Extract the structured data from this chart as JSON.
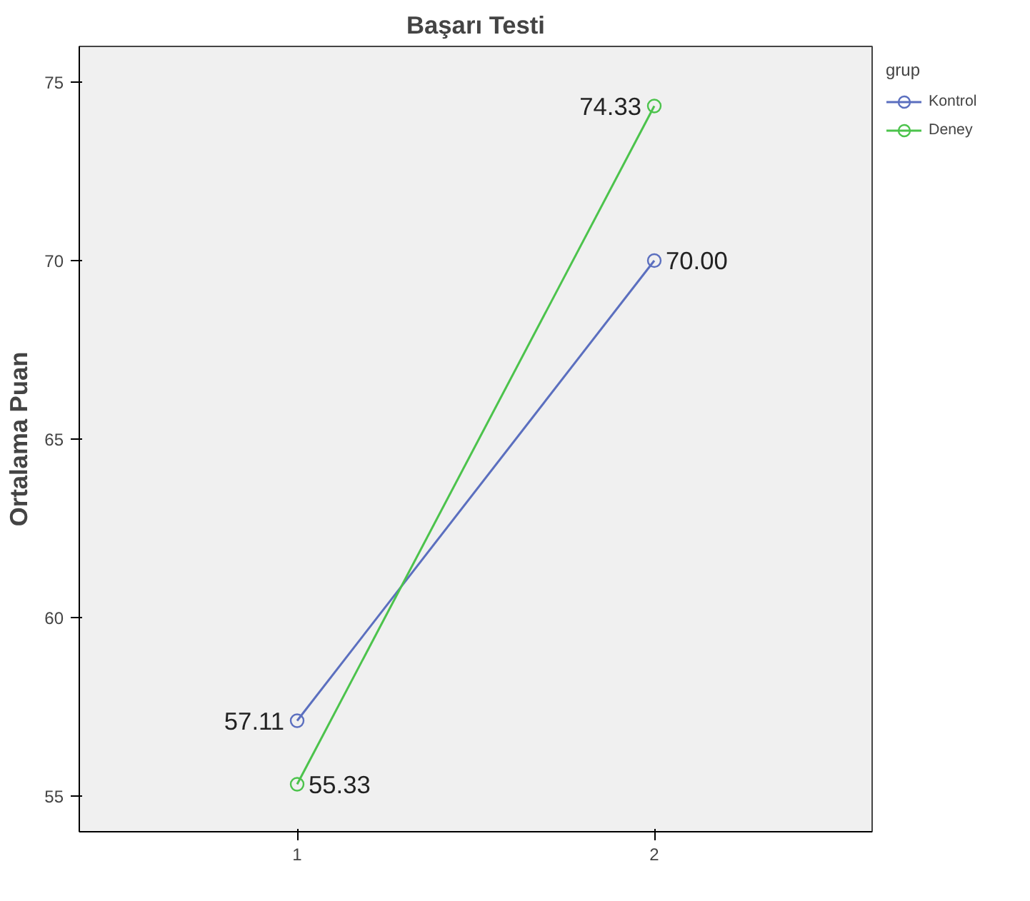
{
  "chart_data": {
    "type": "line",
    "title": "Başarı Testi",
    "ylabel": "Ortalama Puan",
    "categories": [
      "1",
      "2"
    ],
    "series": [
      {
        "name": "Kontrol",
        "color": "#5b6fbf",
        "values": [
          57.11,
          70.0
        ],
        "value_labels": [
          "57.11",
          "70.00"
        ]
      },
      {
        "name": "Deney",
        "color": "#4cc34c",
        "values": [
          55.33,
          74.33
        ],
        "value_labels": [
          "55.33",
          "74.33"
        ]
      }
    ],
    "ylim": [
      54,
      76
    ],
    "yticks": [
      55,
      60,
      65,
      70,
      75
    ],
    "grid": false,
    "legend": "right",
    "legend_title": "grup",
    "marker": "circle",
    "line_style": "solid"
  }
}
